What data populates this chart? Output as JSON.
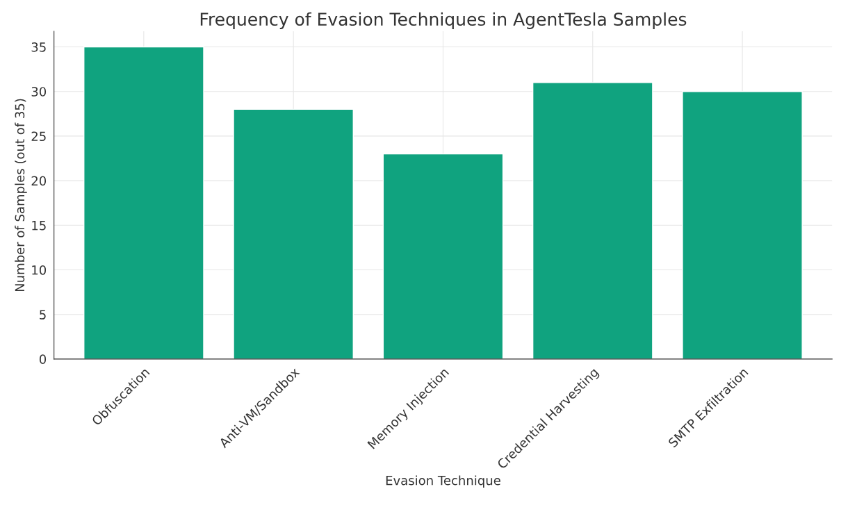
{
  "chart_data": {
    "type": "bar",
    "title": "Frequency of Evasion Techniques in AgentTesla Samples",
    "xlabel": "Evasion Technique",
    "ylabel": "Number of Samples (out of 35)",
    "categories": [
      "Obfuscation",
      "Anti-VM/Sandbox",
      "Memory Injection",
      "Credential Harvesting",
      "SMTP Exfiltration"
    ],
    "values": [
      35,
      28,
      23,
      31,
      30
    ],
    "color": "#10a37f",
    "ylim": [
      0,
      36.75
    ],
    "yticks": [
      0,
      5,
      10,
      15,
      20,
      25,
      30,
      35
    ],
    "grid": true
  }
}
